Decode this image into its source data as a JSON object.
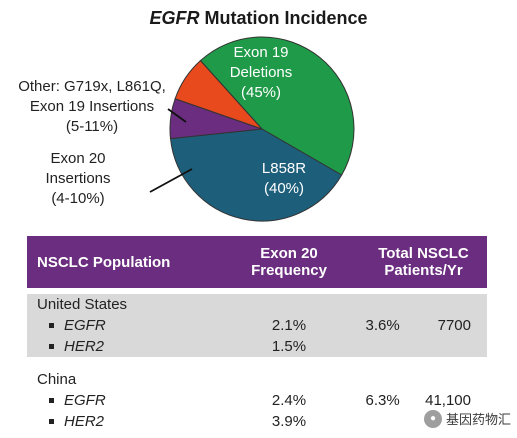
{
  "chart_data": {
    "type": "pie",
    "title_italic": "EGFR",
    "title_rest": " Mutation Incidence",
    "slices": [
      {
        "lines": [
          "Exon 19",
          "Deletions",
          "(45%)"
        ],
        "value": 45,
        "color": "#1f9a48"
      },
      {
        "lines": [
          "L858R",
          "(40%)"
        ],
        "value": 40,
        "color": "#1d5e7a"
      },
      {
        "lines": [
          "Exon 20",
          "Insertions",
          "(4-10%)"
        ],
        "value": 7,
        "color": "#6b2d7f"
      },
      {
        "lines": [
          "Other: G719x, L861Q,",
          "Exon 19 Insertions",
          "(5-11%)"
        ],
        "value": 8,
        "color": "#e84a1d"
      }
    ]
  },
  "table": {
    "headers": [
      "NSCLC Population",
      "Exon 20\nFrequency",
      "Total NSCLC\nPatients/Yr"
    ],
    "groups": [
      {
        "country": "United States",
        "rows": [
          {
            "gene": "EGFR",
            "freq": "2.1%",
            "pct": "3.6%",
            "patients": "7700"
          },
          {
            "gene": "HER2",
            "freq": "1.5%",
            "pct": "",
            "patients": ""
          }
        ]
      },
      {
        "country": "China",
        "rows": [
          {
            "gene": "EGFR",
            "freq": "2.4%",
            "pct": "6.3%",
            "patients": "41,100"
          },
          {
            "gene": "HER2",
            "freq": "3.9%",
            "pct": "",
            "patients": ""
          }
        ]
      }
    ]
  },
  "watermark": {
    "icon": "wechat-icon",
    "text": "基因药物汇"
  }
}
